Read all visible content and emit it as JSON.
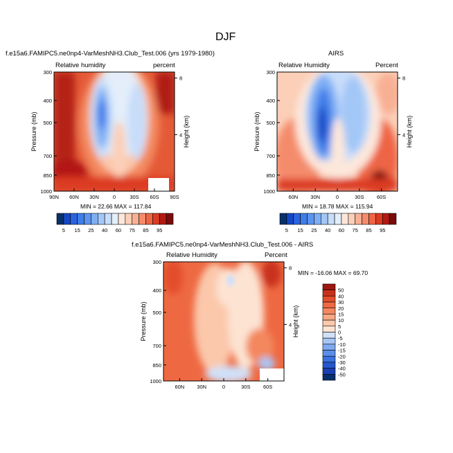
{
  "figure_title": "DJF",
  "colors": {
    "rh_scale": [
      "#08306b",
      "#1447c4",
      "#2b63df",
      "#3f7de8",
      "#5c95ef",
      "#7eaef4",
      "#a3c7f7",
      "#c8ddf9",
      "#e3eefa",
      "#fde7db",
      "#fbcfb8",
      "#f8b094",
      "#f48c6c",
      "#ee6545",
      "#dc3b23",
      "#b31912",
      "#7a0b0b"
    ],
    "diff_scale": [
      "#08306b",
      "#1a3fb0",
      "#2457cd",
      "#3a72e0",
      "#5a8ee9",
      "#7fa9f0",
      "#a7c5f5",
      "#d0e0f8",
      "#fde3d2",
      "#fbc8ab",
      "#f7a884",
      "#f3885f",
      "#ee6942",
      "#e34d29",
      "#c9301a",
      "#9e1710"
    ]
  },
  "panels": {
    "model": {
      "heading": "f.e15a6.FAMIPC5.ne0np4-VarMeshNH3.Club_Test.006 (yrs 1979-1980)",
      "left_label": "Relative humidity",
      "right_label": "percent",
      "minmax": "MIN = 22.66   MAX = 117.84"
    },
    "obs": {
      "heading": "AIRS",
      "left_label": "Relative Humidity",
      "right_label": "Percent",
      "minmax": "MIN = 18.78   MAX = 115.94"
    },
    "diff": {
      "heading": "f.e15a6.FAMIPC5.ne0np4-VarMeshNH3.Club_Test.006 - AIRS",
      "left_label": "Relative Humidity",
      "right_label": "Percent",
      "minmax": "MIN = -16.06   MAX =  69.70"
    }
  },
  "axes": {
    "ylabel": "Pressure (mb)",
    "ylabel_right": "Height (km)"
  },
  "chart_data": [
    {
      "type": "heatmap",
      "title": "f.e15a6.FAMIPC5.ne0np4-VarMeshNH3.Club_Test.006 (yrs 1979-1980)",
      "ylabel": "Pressure (mb)",
      "y2label": "Height (km)",
      "x_ticks": [
        "90N",
        "60N",
        "30N",
        "0",
        "30S",
        "60S",
        "90S"
      ],
      "y_ticks": [
        "300",
        "400",
        "500",
        "700",
        "850",
        "1000"
      ],
      "y2_ticks": [
        "8",
        "4"
      ],
      "ylim": [
        1000,
        300
      ],
      "min": 22.66,
      "max": 117.84,
      "colorbar_labels": [
        "5",
        "15",
        "25",
        "40",
        "60",
        "75",
        "85",
        "95"
      ]
    },
    {
      "type": "heatmap",
      "title": "AIRS",
      "ylabel": "Pressure (mb)",
      "y2label": "Height (km)",
      "x_ticks": [
        "60N",
        "30N",
        "0",
        "30S",
        "60S"
      ],
      "y_ticks": [
        "300",
        "400",
        "500",
        "700",
        "850",
        "1000"
      ],
      "y2_ticks": [
        "8",
        "4"
      ],
      "ylim": [
        1000,
        300
      ],
      "min": 18.78,
      "max": 115.94,
      "colorbar_labels": [
        "5",
        "15",
        "25",
        "40",
        "60",
        "75",
        "85",
        "95"
      ]
    },
    {
      "type": "heatmap",
      "title": "f.e15a6.FAMIPC5.ne0np4-VarMeshNH3.Club_Test.006 - AIRS",
      "ylabel": "Pressure (mb)",
      "y2label": "Height (km)",
      "x_ticks": [
        "60N",
        "30N",
        "0",
        "30S",
        "60S"
      ],
      "y_ticks": [
        "300",
        "400",
        "500",
        "700",
        "850",
        "1000"
      ],
      "y2_ticks": [
        "8",
        "4"
      ],
      "ylim": [
        1000,
        300
      ],
      "min": -16.06,
      "max": 69.7,
      "colorbar_labels": [
        "50",
        "40",
        "30",
        "20",
        "15",
        "10",
        "5",
        "0",
        "-5",
        "-10",
        "-15",
        "-20",
        "-30",
        "-40",
        "-50"
      ]
    }
  ]
}
